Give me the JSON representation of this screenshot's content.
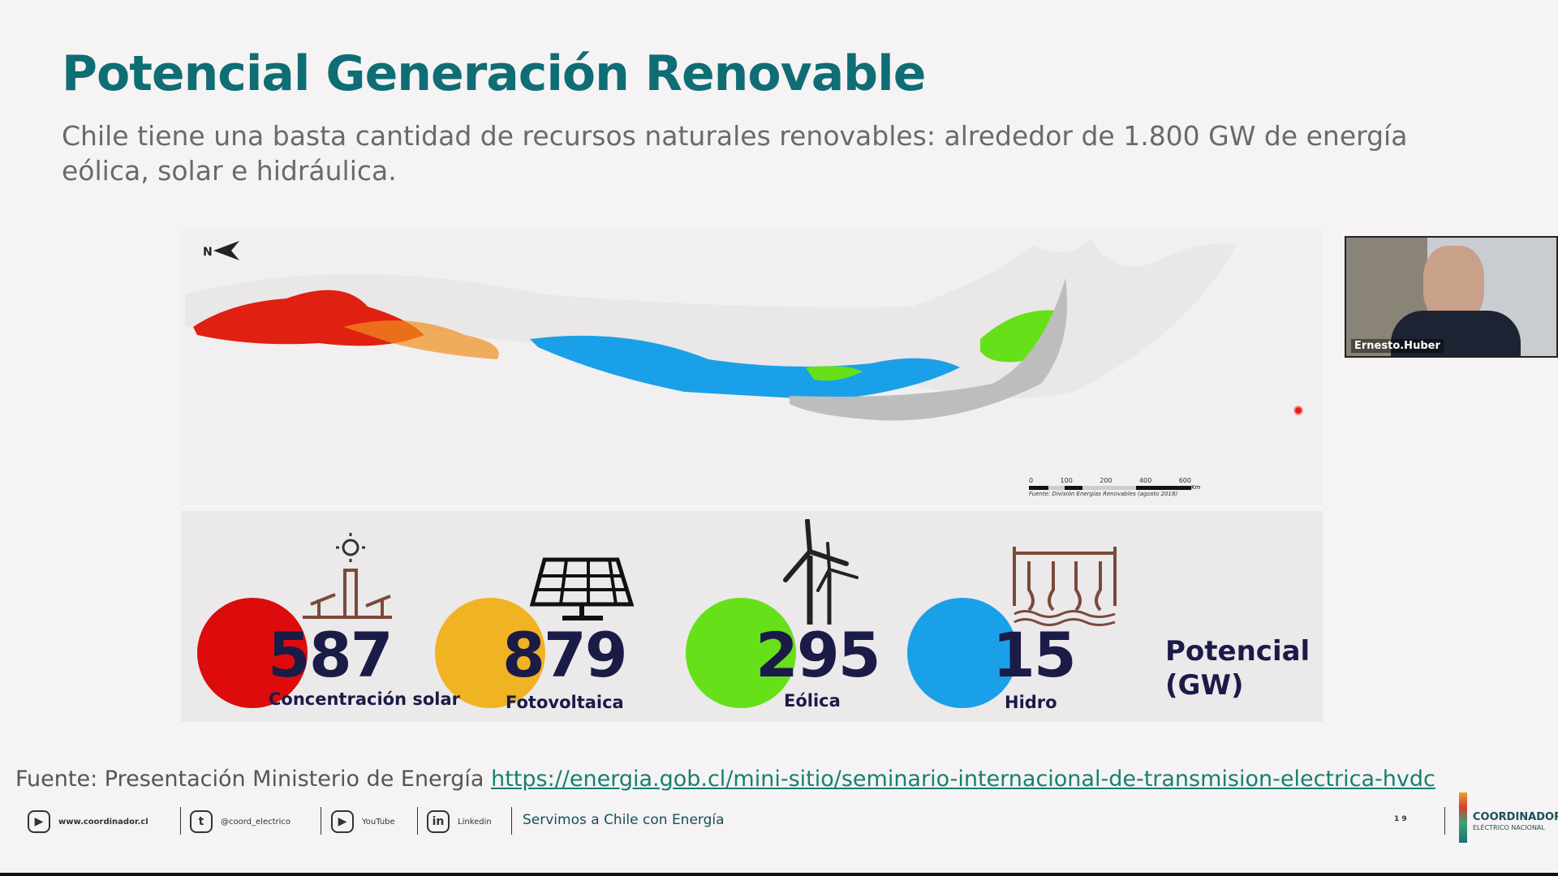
{
  "slide": {
    "title": "Potencial Generación Renovable",
    "subtitle": "Chile tiene una basta cantidad de recursos naturales renovables: alrededor de 1.800 GW de energía eólica, solar e hidráulica.",
    "map": {
      "north_label": "N",
      "scale_ticks": [
        "0",
        "100",
        "200",
        "400",
        "600"
      ],
      "scale_unit": "Km",
      "source": "Fuente: División Energías Renovables (agosto 2018)"
    },
    "potential": {
      "items": [
        {
          "value": "587",
          "label": "Concentración solar",
          "color": "#dd0b0b",
          "icon": "solar-tower-icon"
        },
        {
          "value": "879",
          "label": "Fotovoltaica",
          "color": "#f0b323",
          "icon": "solar-panel-icon"
        },
        {
          "value": "295",
          "label": "Eólica",
          "color": "#66e019",
          "icon": "wind-turbine-icon"
        },
        {
          "value": "15",
          "label": "Hidro",
          "color": "#1aa0e8",
          "icon": "dam-icon"
        }
      ],
      "unit_label_1": "Potencial",
      "unit_label_2": "(GW)"
    },
    "source_prefix": "Fuente: Presentación Ministerio de Energía ",
    "source_link": "https://energia.gob.cl/mini-sitio/seminario-internacional-de-transmision-electrica-hvdc",
    "footer": {
      "website": "www.coordinador.cl",
      "twitter": "@coord_electrico",
      "youtube": "YouTube",
      "linkedin": "Linkedin",
      "slogan": "Servimos a Chile con Energía",
      "page": "1 9",
      "logo_1": "COORDINADOR",
      "logo_2": "ELÉCTRICO NACIONAL"
    }
  },
  "video": {
    "participant": "Ernesto.Huber"
  }
}
